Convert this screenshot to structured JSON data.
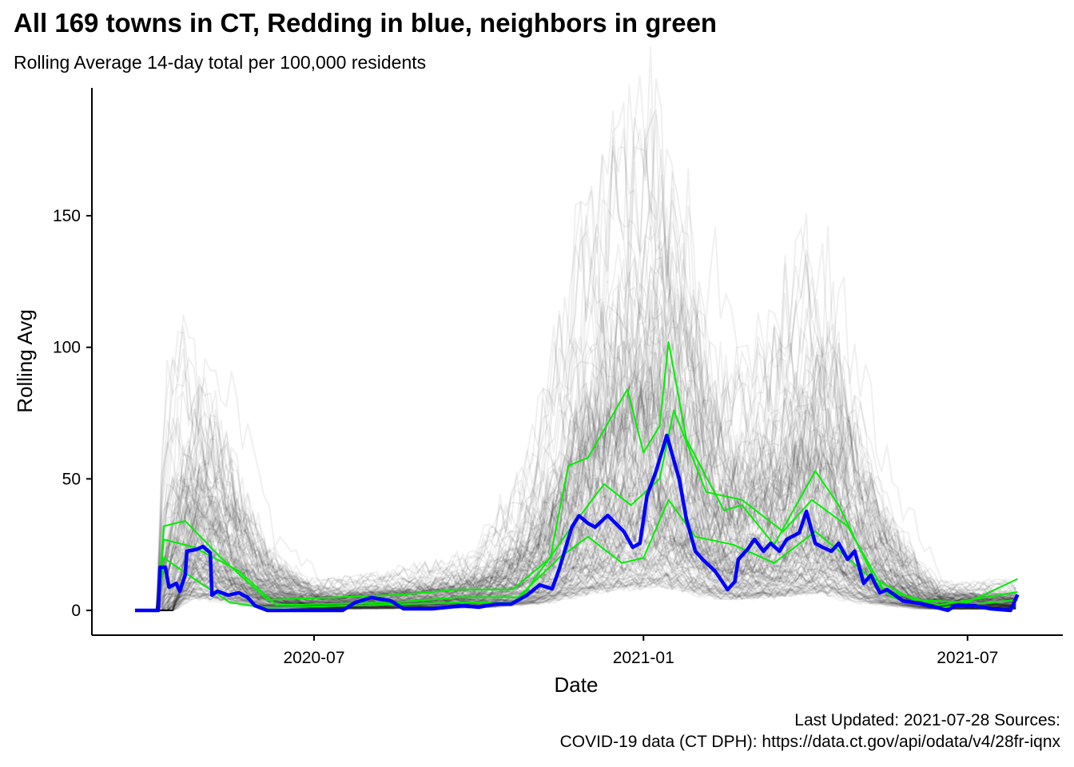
{
  "chart_data": {
    "type": "line",
    "title": "All 169 towns in CT, Redding in blue, neighbors in green",
    "subtitle": "Rolling Average 14-day total per 100,000 residents",
    "xlabel": "Date",
    "ylabel": "Rolling Avg",
    "xlim": [
      "2020-03-10",
      "2021-08-15"
    ],
    "ylim": [
      -9,
      192
    ],
    "x_ticks": [
      "2020-07-01",
      "2021-01-01",
      "2021-07-01"
    ],
    "x_tick_labels": [
      "2020-07",
      "2021-01",
      "2021-07"
    ],
    "y_ticks": [
      0,
      50,
      100,
      150
    ],
    "y_tick_labels": [
      "0",
      "50",
      "100",
      "150"
    ],
    "grid": false,
    "legend": "none",
    "caption_line1": "Last Updated: 2021-07-28  Sources:",
    "caption_line2": "COVID-19 data (CT DPH): https://data.ct.gov/api/odata/v4/28fr-iqnx",
    "colors": {
      "highlight": "#0000ff",
      "neighbors": "#00ee00",
      "others": "#000000"
    },
    "series": [
      {
        "name": "Redding",
        "role": "highlight",
        "x": [
          "2020-03-23",
          "2020-04-05",
          "2020-04-06",
          "2020-04-09",
          "2020-04-11",
          "2020-04-15",
          "2020-04-17",
          "2020-04-20",
          "2020-04-21",
          "2020-04-26",
          "2020-04-30",
          "2020-05-04",
          "2020-05-05",
          "2020-05-08",
          "2020-05-14",
          "2020-05-20",
          "2020-05-25",
          "2020-05-29",
          "2020-06-05",
          "2020-06-16",
          "2020-07-17",
          "2020-07-24",
          "2020-08-02",
          "2020-08-13",
          "2020-08-20",
          "2020-09-05",
          "2020-09-22",
          "2020-10-01",
          "2020-10-10",
          "2020-10-19",
          "2020-10-28",
          "2020-11-04",
          "2020-11-11",
          "2020-11-15",
          "2020-11-22",
          "2020-11-26",
          "2020-12-01",
          "2020-12-05",
          "2020-12-12",
          "2020-12-21",
          "2020-12-26",
          "2020-12-30",
          "2021-01-03",
          "2021-01-08",
          "2021-01-14",
          "2021-01-21",
          "2021-01-25",
          "2021-01-30",
          "2021-02-03",
          "2021-02-10",
          "2021-02-17",
          "2021-02-21",
          "2021-02-23",
          "2021-02-28",
          "2021-03-04",
          "2021-03-09",
          "2021-03-13",
          "2021-03-18",
          "2021-03-22",
          "2021-03-29",
          "2021-04-02",
          "2021-04-07",
          "2021-04-11",
          "2021-04-16",
          "2021-04-20",
          "2021-04-25",
          "2021-04-29",
          "2021-05-04",
          "2021-05-08",
          "2021-05-13",
          "2021-05-17",
          "2021-05-26",
          "2021-06-04",
          "2021-06-13",
          "2021-06-20",
          "2021-06-24",
          "2021-07-05",
          "2021-07-14",
          "2021-07-25",
          "2021-07-29"
        ],
        "values": [
          0,
          0,
          16.4,
          16.4,
          8.8,
          10.3,
          7.3,
          13.4,
          22.5,
          23.1,
          24.3,
          21.9,
          5.8,
          7.3,
          5.8,
          6.7,
          4.9,
          1.8,
          0,
          0,
          0,
          3.0,
          4.9,
          3.6,
          0.6,
          0.6,
          1.8,
          1.2,
          2.4,
          2.4,
          5.8,
          9.7,
          8.2,
          15.8,
          31.6,
          36,
          33.1,
          31.6,
          36.1,
          30,
          24,
          25.5,
          43.7,
          52.8,
          66.5,
          49.8,
          34.6,
          22.5,
          19.4,
          14.9,
          7.9,
          10.9,
          19.4,
          23.1,
          27,
          22.5,
          25.5,
          22.5,
          27,
          29.5,
          37.7,
          25.5,
          24,
          22.5,
          25.5,
          19.4,
          22.5,
          10.3,
          13.4,
          6.7,
          7.9,
          3.6,
          2.7,
          1.2,
          0,
          1.8,
          1.8,
          0.6,
          0,
          6
        ]
      },
      {
        "name": "Neighbor (upper)",
        "role": "neighbors",
        "x": [
          "2020-03-23",
          "2020-04-05",
          "2020-04-08",
          "2020-04-20",
          "2020-05-10",
          "2020-06-05",
          "2020-07-15",
          "2020-08-20",
          "2020-09-20",
          "2020-10-20",
          "2020-11-10",
          "2020-11-20",
          "2020-12-01",
          "2020-12-23",
          "2021-01-01",
          "2021-01-10",
          "2021-01-15",
          "2021-01-25",
          "2021-02-15",
          "2021-02-25",
          "2021-03-15",
          "2021-04-07",
          "2021-04-20",
          "2021-05-10",
          "2021-06-01",
          "2021-07-01",
          "2021-07-29"
        ],
        "values": [
          0,
          0,
          32,
          34,
          20,
          4,
          5,
          6,
          8,
          8,
          20,
          55,
          58,
          84,
          60,
          70,
          102,
          65,
          38,
          40,
          25,
          53,
          40,
          12,
          4,
          3,
          12
        ]
      },
      {
        "name": "Neighbor (lower)",
        "role": "neighbors",
        "x": [
          "2020-03-23",
          "2020-04-05",
          "2020-04-08",
          "2020-04-25",
          "2020-05-15",
          "2020-06-05",
          "2020-08-01",
          "2020-09-20",
          "2020-10-20",
          "2020-11-15",
          "2020-12-01",
          "2020-12-20",
          "2021-01-01",
          "2021-01-15",
          "2021-01-30",
          "2021-02-20",
          "2021-03-15",
          "2021-04-07",
          "2021-04-25",
          "2021-05-20",
          "2021-06-15",
          "2021-07-29"
        ],
        "values": [
          0,
          0,
          20,
          12,
          3,
          1,
          2,
          3,
          3,
          20,
          28,
          18,
          20,
          42,
          28,
          25,
          18,
          30,
          20,
          5,
          1,
          4
        ]
      },
      {
        "name": "Neighbor (mid)",
        "role": "neighbors",
        "x": [
          "2020-03-23",
          "2020-04-05",
          "2020-04-08",
          "2020-04-25",
          "2020-05-20",
          "2020-06-10",
          "2020-08-15",
          "2020-09-20",
          "2020-10-25",
          "2020-11-20",
          "2020-12-10",
          "2020-12-25",
          "2021-01-10",
          "2021-01-18",
          "2021-02-05",
          "2021-02-25",
          "2021-03-20",
          "2021-04-05",
          "2021-04-25",
          "2021-05-15",
          "2021-06-15",
          "2021-07-29"
        ],
        "values": [
          0,
          0,
          27,
          24,
          15,
          2,
          3,
          5,
          5,
          30,
          48,
          40,
          50,
          76,
          45,
          42,
          30,
          42,
          32,
          8,
          2,
          7
        ]
      }
    ],
    "others_typical": {
      "name": "Other towns (typical)",
      "x": [
        "2020-03-23",
        "2020-04-05",
        "2020-04-20",
        "2020-05-10",
        "2020-06-01",
        "2020-07-01",
        "2020-08-15",
        "2020-10-01",
        "2020-11-01",
        "2020-12-01",
        "2021-01-10",
        "2021-02-15",
        "2021-03-10",
        "2021-04-10",
        "2021-05-10",
        "2021-06-10",
        "2021-07-29"
      ],
      "values": [
        0,
        0,
        30,
        22,
        8,
        3,
        4,
        6,
        15,
        40,
        55,
        25,
        28,
        40,
        15,
        3,
        3
      ],
      "count": 169
    }
  }
}
